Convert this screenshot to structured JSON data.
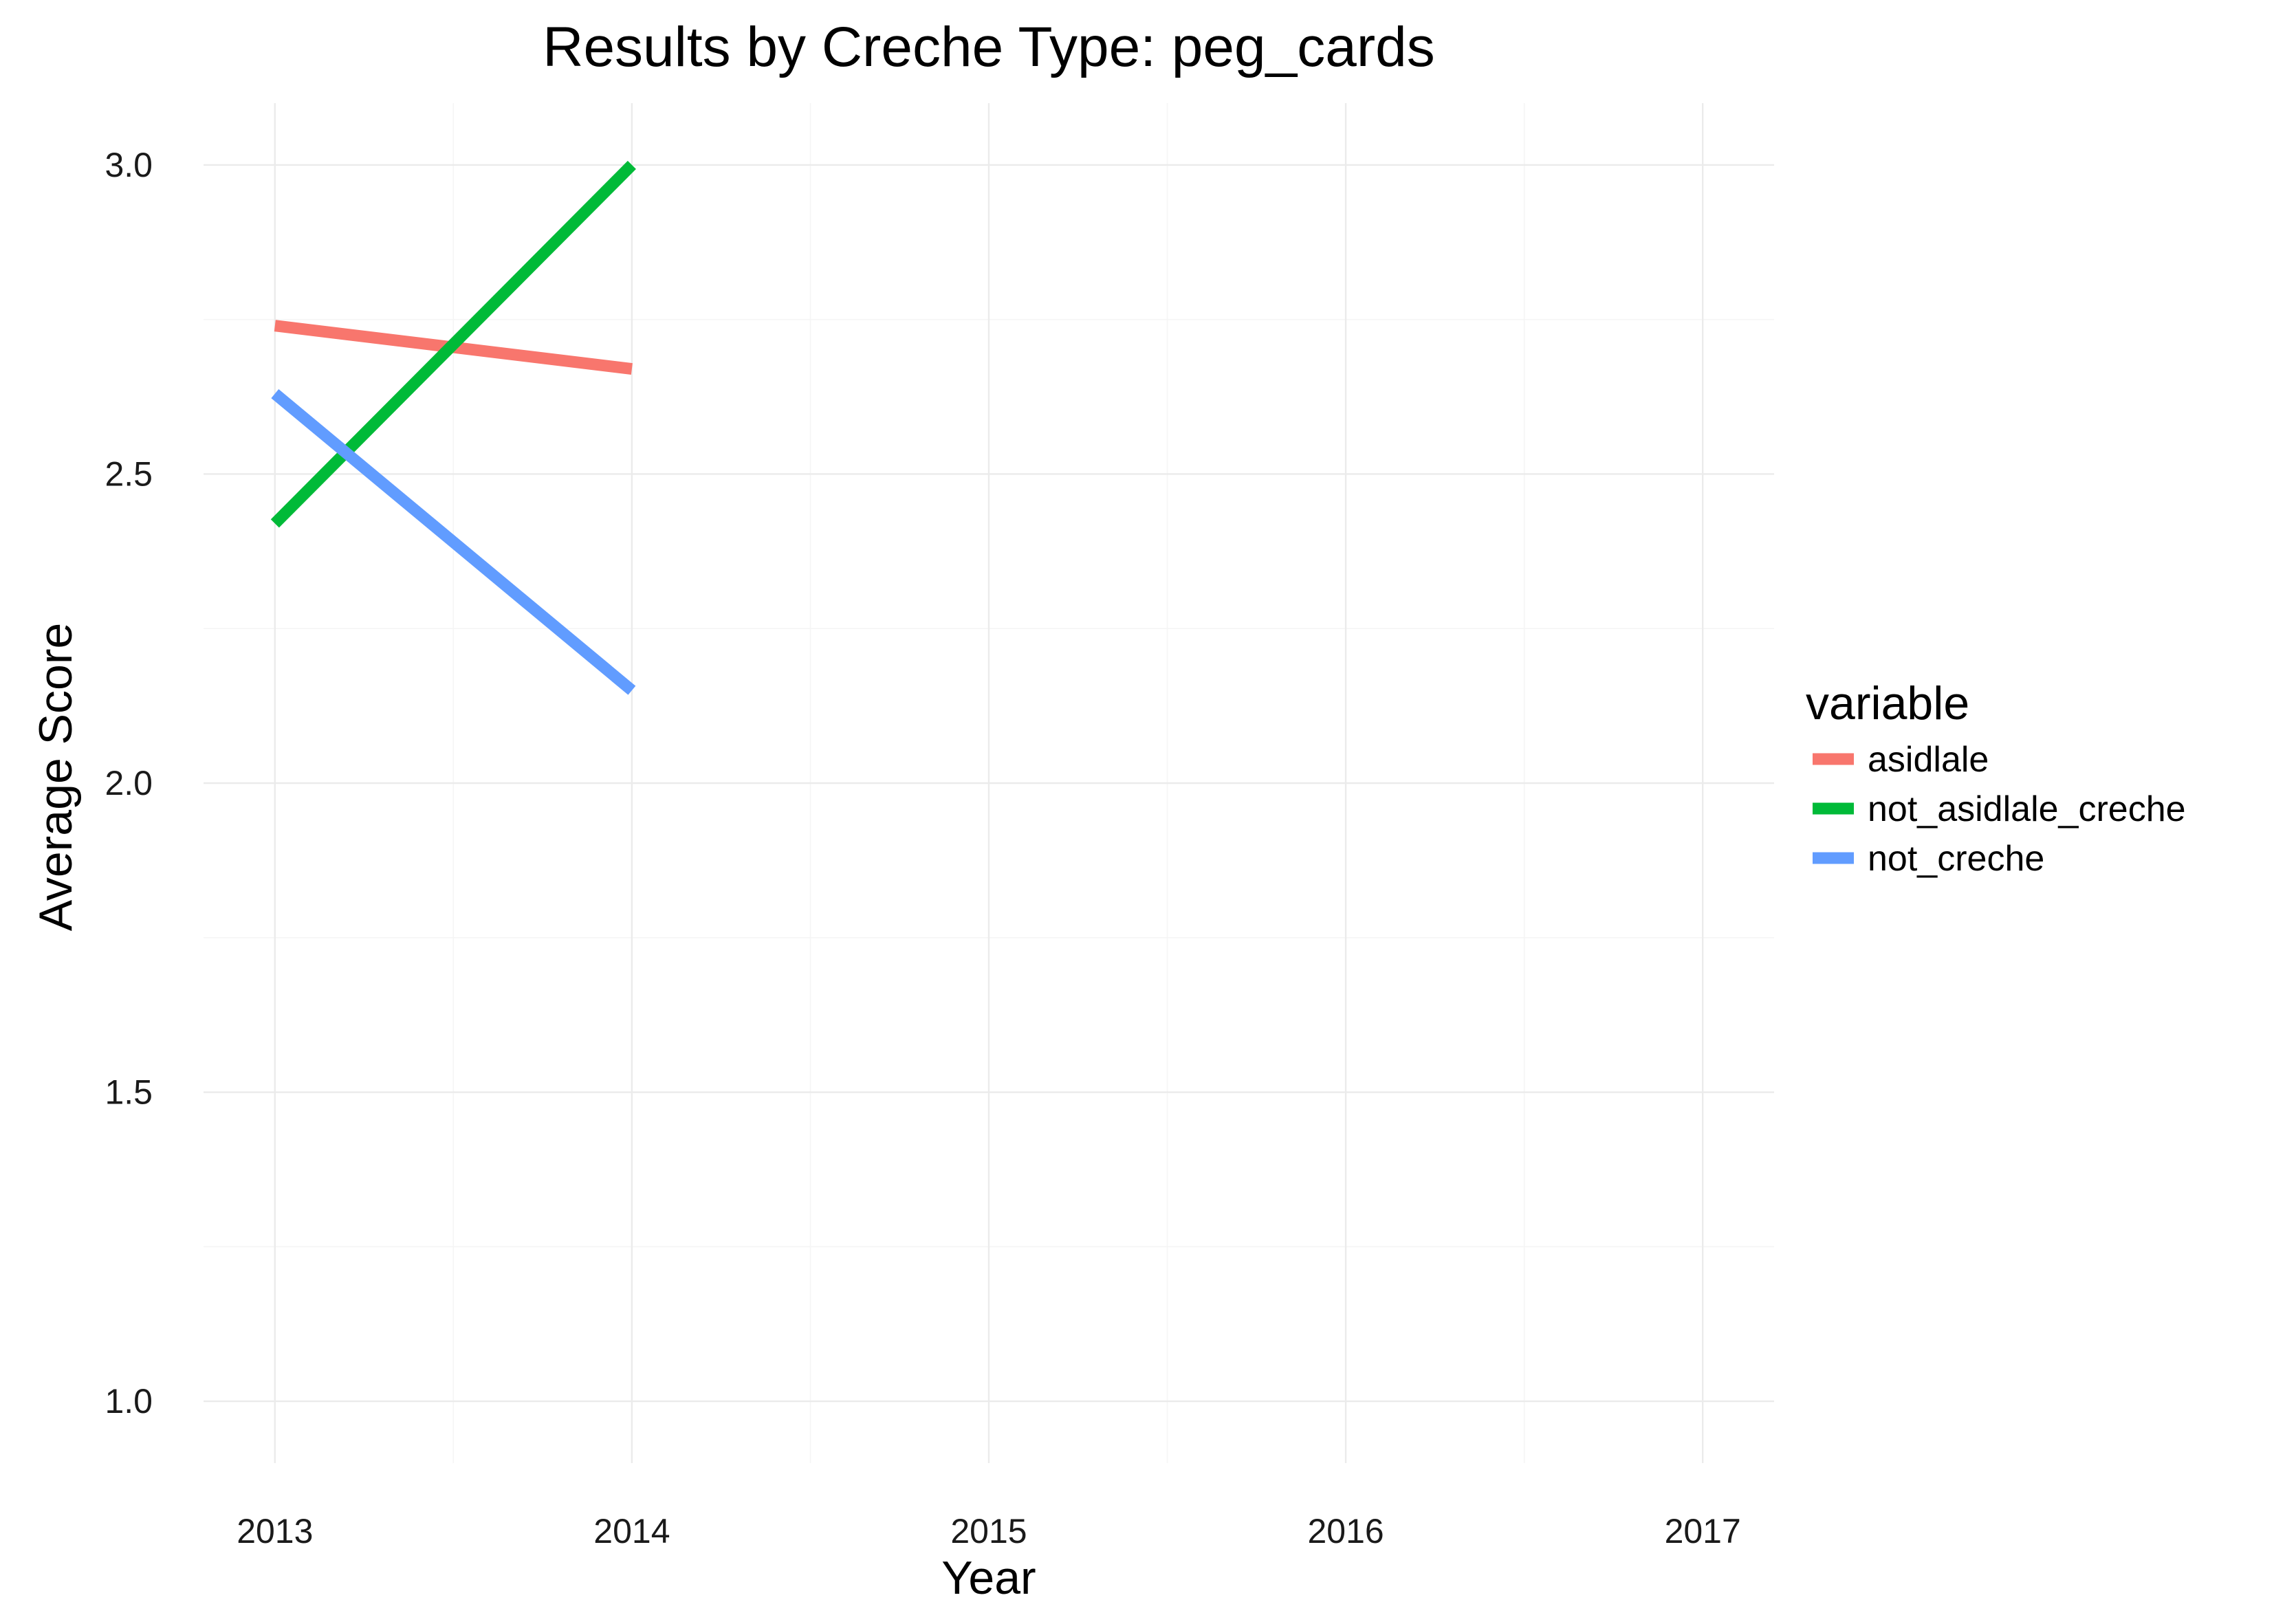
{
  "chart_data": {
    "type": "line",
    "title": "Results by Creche Type: peg_cards",
    "xlabel": "Year",
    "ylabel": "Average Score",
    "xlim": [
      2012.8,
      2017.2
    ],
    "ylim": [
      0.9,
      3.1
    ],
    "x_ticks": [
      "2013",
      "2014",
      "2015",
      "2016",
      "2017"
    ],
    "y_ticks": [
      "1.0",
      "1.5",
      "2.0",
      "2.5",
      "3.0"
    ],
    "grid": true,
    "legend": {
      "title": "variable",
      "position": "right"
    },
    "series": [
      {
        "name": "asidlale",
        "color": "#F8766D",
        "x": [
          2013,
          2014
        ],
        "y": [
          2.74,
          2.67
        ]
      },
      {
        "name": "not_asidlale_creche",
        "color": "#00BA38",
        "x": [
          2013,
          2014
        ],
        "y": [
          2.42,
          3.0
        ]
      },
      {
        "name": "not_creche",
        "color": "#619CFF",
        "x": [
          2013,
          2014
        ],
        "y": [
          2.63,
          2.15
        ]
      }
    ]
  }
}
